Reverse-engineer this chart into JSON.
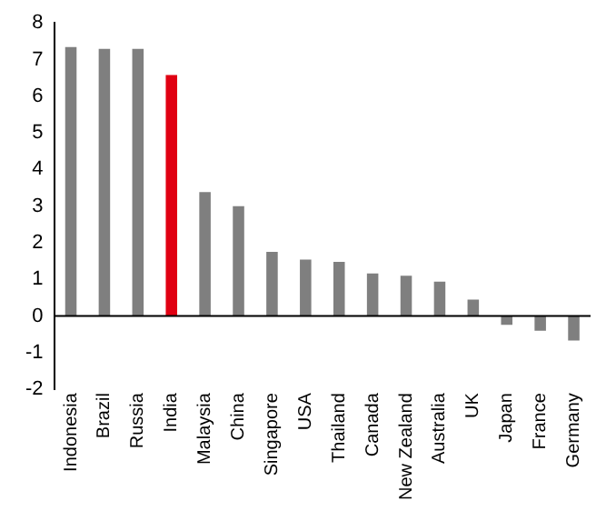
{
  "chart_data": {
    "type": "bar",
    "categories": [
      "Indonesia",
      "Brazil",
      "Russia",
      "India",
      "Malaysia",
      "China",
      "Singapore",
      "USA",
      "Thailand",
      "Canada",
      "New Zealand",
      "Australia",
      "UK",
      "Japan",
      "France",
      "Germany"
    ],
    "values": [
      7.34,
      7.29,
      7.29,
      6.58,
      3.38,
      3.0,
      1.75,
      1.54,
      1.48,
      1.16,
      1.1,
      0.94,
      0.45,
      -0.24,
      -0.4,
      -0.67
    ],
    "colors": [
      "#7f7f7f",
      "#7f7f7f",
      "#7f7f7f",
      "#e00012",
      "#7f7f7f",
      "#7f7f7f",
      "#7f7f7f",
      "#7f7f7f",
      "#7f7f7f",
      "#7f7f7f",
      "#7f7f7f",
      "#7f7f7f",
      "#7f7f7f",
      "#7f7f7f",
      "#7f7f7f",
      "#7f7f7f"
    ],
    "ylim": [
      -2,
      8
    ],
    "yticks": [
      -2,
      -1,
      0,
      1,
      2,
      3,
      4,
      5,
      6,
      7,
      8
    ]
  }
}
